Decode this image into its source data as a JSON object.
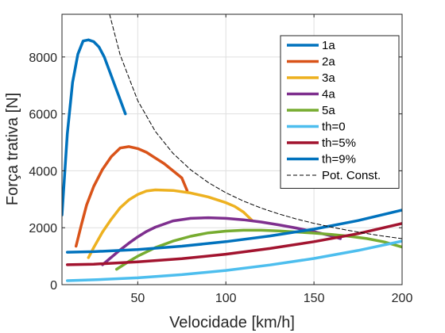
{
  "chart_data": {
    "type": "line",
    "title": "",
    "xlabel": "Velocidade [km/h]",
    "ylabel": "Força trativa [N]",
    "xlim": [
      7,
      200
    ],
    "ylim": [
      0,
      9500
    ],
    "xticks": [
      50,
      100,
      150,
      200
    ],
    "yticks": [
      0,
      2000,
      4000,
      6000,
      8000
    ],
    "xtick_labels": [
      "50",
      "100",
      "150",
      "200"
    ],
    "ytick_labels": [
      "0",
      "2000",
      "4000",
      "6000",
      "8000"
    ],
    "grid": true,
    "legend_position": "top-right",
    "series": [
      {
        "name": "1a",
        "color": "#0072BD",
        "style": "solid",
        "x": [
          7,
          10,
          13,
          16,
          19,
          22,
          25,
          28,
          31,
          34,
          37,
          40,
          43
        ],
        "y": [
          2450,
          5300,
          7100,
          8100,
          8560,
          8600,
          8540,
          8350,
          8000,
          7500,
          7000,
          6500,
          6000
        ]
      },
      {
        "name": "2a",
        "color": "#D95319",
        "style": "solid",
        "x": [
          15,
          18,
          21,
          25,
          30,
          35,
          40,
          45,
          50,
          55,
          60,
          65,
          70,
          75,
          78
        ],
        "y": [
          1350,
          2100,
          2800,
          3450,
          4050,
          4500,
          4800,
          4850,
          4780,
          4650,
          4450,
          4250,
          4000,
          3750,
          3300
        ]
      },
      {
        "name": "3a",
        "color": "#EDB120",
        "style": "solid",
        "x": [
          22,
          25,
          30,
          35,
          40,
          45,
          50,
          55,
          60,
          70,
          80,
          90,
          100,
          105,
          110,
          115
        ],
        "y": [
          950,
          1300,
          1850,
          2300,
          2700,
          2980,
          3170,
          3290,
          3330,
          3310,
          3220,
          3080,
          2880,
          2750,
          2550,
          2250
        ]
      },
      {
        "name": "4a",
        "color": "#7E2F8E",
        "style": "solid",
        "x": [
          30,
          35,
          40,
          45,
          50,
          55,
          60,
          70,
          80,
          90,
          100,
          110,
          120,
          130,
          140,
          150,
          160,
          165
        ],
        "y": [
          700,
          960,
          1220,
          1460,
          1680,
          1870,
          2020,
          2240,
          2330,
          2350,
          2330,
          2280,
          2200,
          2100,
          1990,
          1860,
          1710,
          1620
        ]
      },
      {
        "name": "5a",
        "color": "#77AC30",
        "style": "solid",
        "x": [
          38,
          45,
          50,
          60,
          70,
          80,
          90,
          100,
          110,
          120,
          130,
          140,
          150,
          160,
          170,
          180,
          190,
          200
        ],
        "y": [
          540,
          820,
          1000,
          1300,
          1530,
          1700,
          1820,
          1880,
          1910,
          1910,
          1890,
          1850,
          1810,
          1760,
          1700,
          1620,
          1500,
          1320
        ]
      },
      {
        "name": "th=0",
        "color": "#4DBEEE",
        "style": "solid",
        "x": [
          10,
          25,
          50,
          75,
          100,
          125,
          150,
          175,
          200
        ],
        "y": [
          140,
          170,
          240,
          350,
          500,
          690,
          920,
          1200,
          1530
        ]
      },
      {
        "name": "th=5%",
        "color": "#A2142F",
        "style": "solid",
        "x": [
          10,
          25,
          50,
          75,
          100,
          125,
          150,
          175,
          200
        ],
        "y": [
          700,
          720,
          800,
          910,
          1070,
          1270,
          1510,
          1790,
          2150
        ]
      },
      {
        "name": "th=9%",
        "color": "#0072BD",
        "style": "solid",
        "x": [
          10,
          25,
          50,
          75,
          100,
          125,
          150,
          175,
          200
        ],
        "y": [
          1140,
          1160,
          1230,
          1350,
          1510,
          1710,
          1950,
          2250,
          2620
        ]
      },
      {
        "name": "Pot. Const.",
        "color": "#000000",
        "style": "dashed",
        "x": [
          34,
          40,
          50,
          60,
          70,
          80,
          90,
          100,
          110,
          120,
          130,
          140,
          150,
          160,
          170,
          180,
          190,
          200
        ],
        "y": [
          9500,
          8075,
          6460,
          5383,
          4614,
          4038,
          3589,
          3230,
          2936,
          2692,
          2485,
          2307,
          2153,
          2019,
          1900,
          1794,
          1700,
          1615
        ]
      }
    ]
  }
}
